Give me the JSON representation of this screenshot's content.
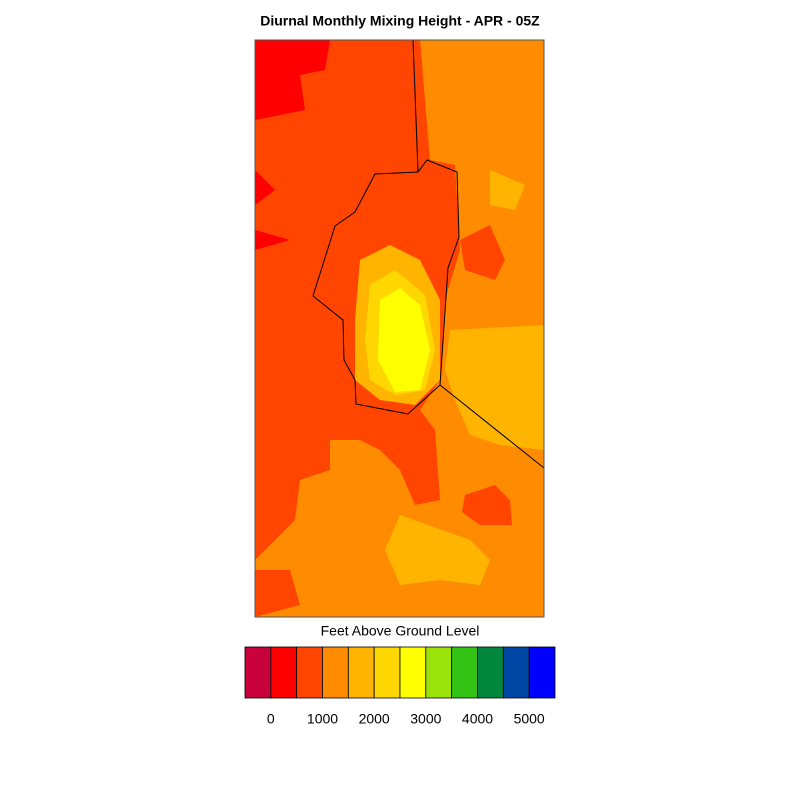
{
  "title": "Diurnal Monthly Mixing Height - APR - 05Z",
  "colorbar": {
    "label": "Feet Above Ground Level",
    "colors": [
      "#c8003c",
      "#ff0000",
      "#ff4500",
      "#ff8c00",
      "#ffb400",
      "#ffd700",
      "#ffff00",
      "#9be10a",
      "#32c314",
      "#00873c",
      "#0046a5",
      "#0000ff"
    ],
    "lim": [
      -500,
      5500
    ],
    "ticks": [
      0,
      1000,
      2000,
      3000,
      4000,
      5000
    ]
  }
}
